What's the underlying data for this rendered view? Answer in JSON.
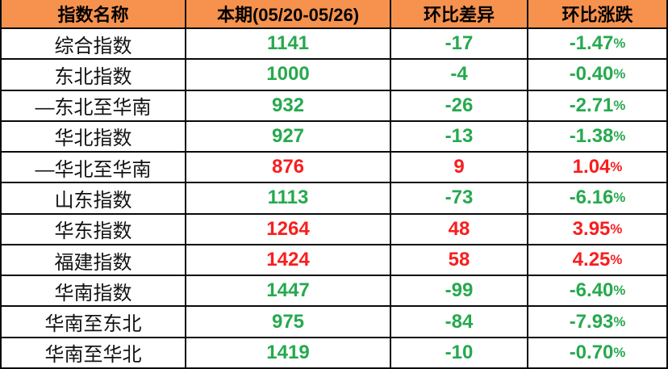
{
  "table": {
    "title": "container shipping index weekly table",
    "header": {
      "cols": [
        "指数名称",
        "本期(05/20-05/26)",
        "环比差异",
        "环比涨跌"
      ]
    },
    "rows": [
      {
        "name": "综合指数",
        "current": "1141",
        "diff": "-17",
        "pct": "-1.47%",
        "trend": "down"
      },
      {
        "name": "东北指数",
        "current": "1000",
        "diff": "-4",
        "pct": "-0.40%",
        "trend": "down"
      },
      {
        "name": "—东北至华南",
        "current": "932",
        "diff": "-26",
        "pct": "-2.71%",
        "trend": "down"
      },
      {
        "name": "华北指数",
        "current": "927",
        "diff": "-13",
        "pct": "-1.38%",
        "trend": "down"
      },
      {
        "name": "—华北至华南",
        "current": "876",
        "diff": "9",
        "pct": "1.04%",
        "trend": "up"
      },
      {
        "name": "山东指数",
        "current": "1113",
        "diff": "-73",
        "pct": "-6.16%",
        "trend": "down"
      },
      {
        "name": "华东指数",
        "current": "1264",
        "diff": "48",
        "pct": "3.95%",
        "trend": "up"
      },
      {
        "name": "福建指数",
        "current": "1424",
        "diff": "58",
        "pct": "4.25%",
        "trend": "up"
      },
      {
        "name": "华南指数",
        "current": "1447",
        "diff": "-99",
        "pct": "-6.40%",
        "trend": "down"
      },
      {
        "name": "华南至东北",
        "current": "975",
        "diff": "-84",
        "pct": "-7.93%",
        "trend": "down"
      },
      {
        "name": "华南至华北",
        "current": "1419",
        "diff": "-10",
        "pct": "-0.70%",
        "trend": "down"
      }
    ]
  },
  "colors": {
    "header_bg": "#f6924e",
    "grid_line": "#0a0a0a",
    "rise_red": "#f81e1e",
    "decline_green": "#26a94e",
    "name_text": "#141414",
    "row_bg": "#ffffff"
  }
}
